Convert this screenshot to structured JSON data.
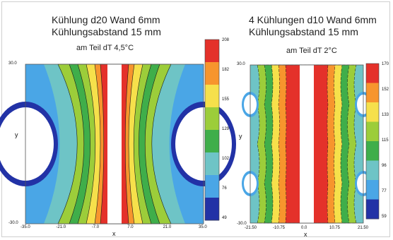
{
  "chart_data": [
    {
      "type": "heatmap",
      "title_lines": [
        "Kühlung d20  Wand 6mm",
        "Kühlungsabstand 15 mm"
      ],
      "subtitle": "am Teil dT 4,5°C",
      "xlabel": "x",
      "ylabel": "y",
      "xlim": [
        -35.0,
        35.0
      ],
      "ylim": [
        -30.0,
        30.0
      ],
      "x_ticks": [
        "-35.0",
        "-21.0",
        "-7.0",
        "7.0",
        "21.0",
        "35.0"
      ],
      "y_ticks": [
        "30.0",
        "-30.0"
      ],
      "colorbar_ticks": [
        "208",
        "182",
        "155",
        "129",
        "102",
        "76",
        "49"
      ],
      "colorbar_range": [
        49,
        208
      ]
    },
    {
      "type": "heatmap",
      "title_lines": [
        "4 Kühlungen d10  Wand 6mm",
        "Kühlungsabstand 15 mm"
      ],
      "subtitle": "am Teil dT 2°C",
      "xlabel": "x",
      "ylabel": "y",
      "xlim": [
        -21.5,
        21.5
      ],
      "ylim": [
        -30.0,
        30.0
      ],
      "x_ticks": [
        "-21.50",
        "-10.75",
        "0.0",
        "10.75",
        "21.50"
      ],
      "y_ticks": [
        "30.0",
        "-30.0"
      ],
      "colorbar_ticks": [
        "170",
        "152",
        "133",
        "115",
        "96",
        "77",
        "59"
      ],
      "colorbar_range": [
        59,
        170
      ]
    }
  ],
  "colors": [
    "#f5e8dc",
    "#e4312a",
    "#f7952d",
    "#f6e04b",
    "#9ccd3a",
    "#3fae4a",
    "#6ec4c6",
    "#4aa6e6",
    "#2232a6"
  ]
}
